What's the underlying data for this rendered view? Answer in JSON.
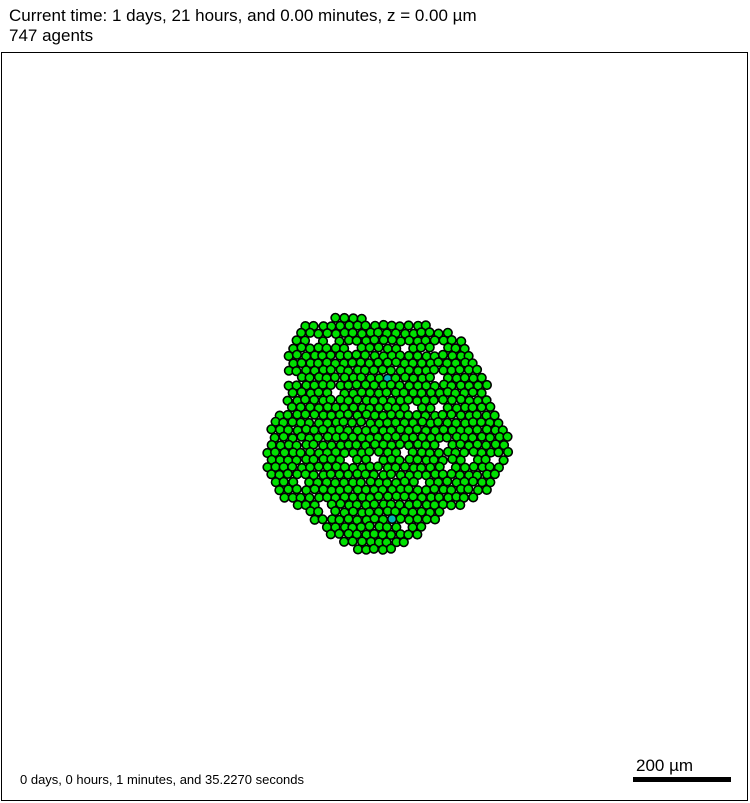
{
  "header": {
    "time_line": "Current time: 1 days, 21 hours, and 0.00 minutes, z = 0.00 µm",
    "agents_line": "747 agents"
  },
  "footer": {
    "runtime": "0 days, 0 hours, 1 minutes, and 35.2270 seconds",
    "scale_label": "200 µm"
  },
  "colors": {
    "cell_fill": "#00e000",
    "cell_outline": "#000000",
    "special_cell_fill": "#00b4b4",
    "background": "#ffffff"
  }
}
